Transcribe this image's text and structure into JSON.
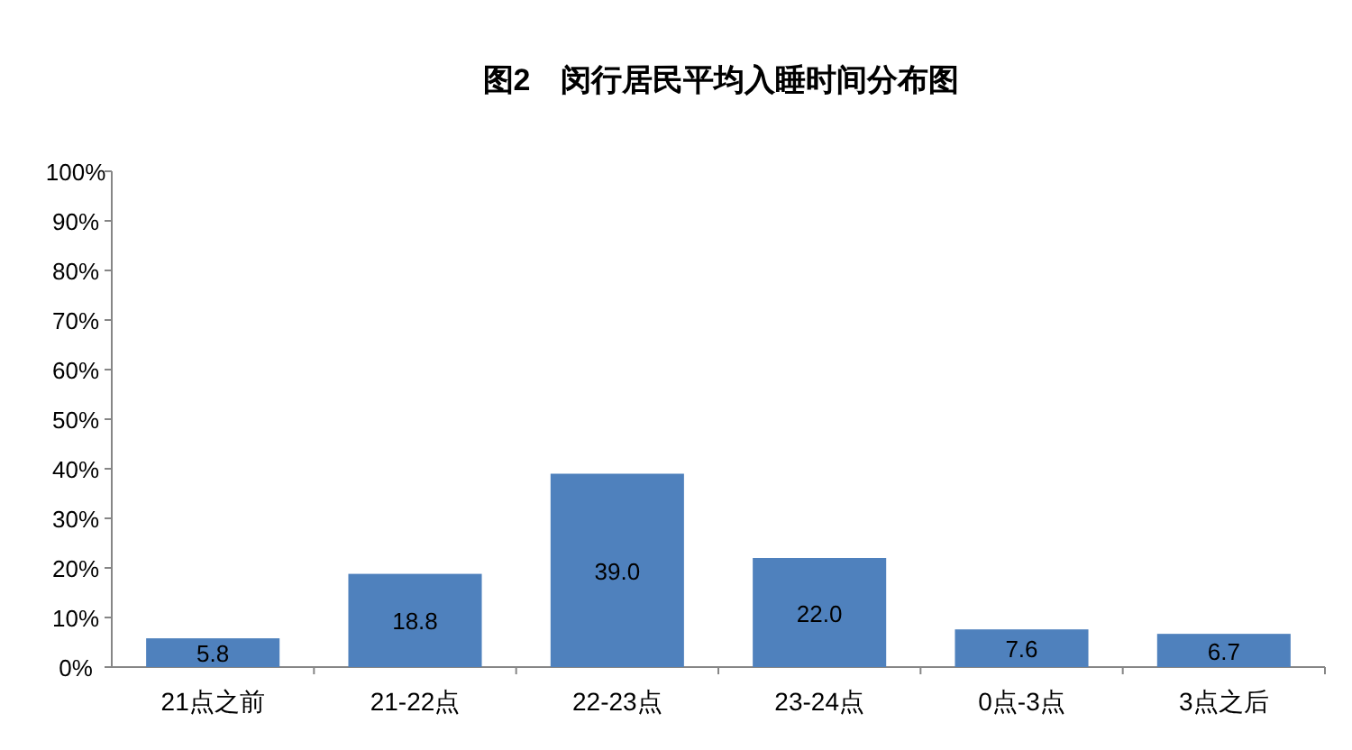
{
  "chart_data": {
    "type": "bar",
    "title": "图2　闵行居民平均入睡时间分布图",
    "categories": [
      "21点之前",
      "21-22点",
      "22-23点",
      "23-24点",
      "0点-3点",
      "3点之后"
    ],
    "values": [
      5.8,
      18.8,
      39.0,
      22.0,
      7.6,
      6.7
    ],
    "value_labels": [
      "5.8",
      "18.8",
      "39.0",
      "22.0",
      "7.6",
      "6.7"
    ],
    "color": "#4f81bd",
    "ylim": [
      0,
      100
    ],
    "yticks": [
      {
        "value": 0,
        "label": "0%"
      },
      {
        "value": 10,
        "label": "10%"
      },
      {
        "value": 20,
        "label": "20%"
      },
      {
        "value": 30,
        "label": "30%"
      },
      {
        "value": 40,
        "label": "40%"
      },
      {
        "value": 50,
        "label": "50%"
      },
      {
        "value": 60,
        "label": "60%"
      },
      {
        "value": 70,
        "label": "70%"
      },
      {
        "value": 80,
        "label": "80%"
      },
      {
        "value": 90,
        "label": "90%"
      },
      {
        "value": 100,
        "label": "100%"
      }
    ]
  }
}
